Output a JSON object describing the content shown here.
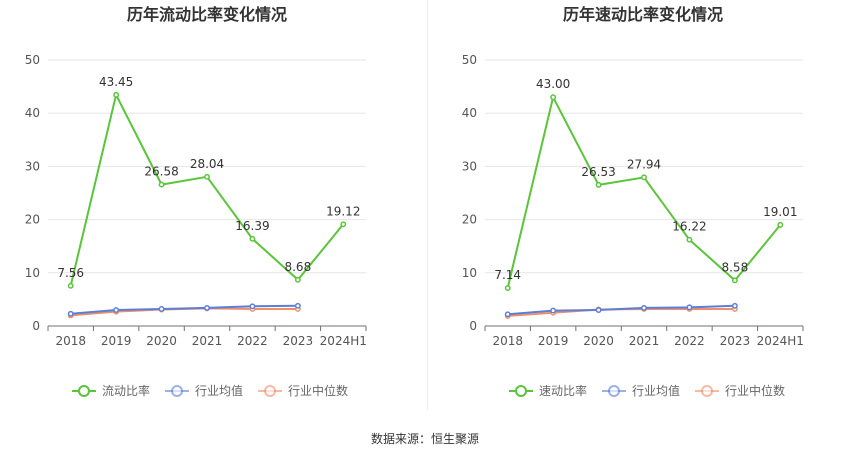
{
  "source_label": "数据来源：恒生聚源",
  "chart_data": [
    {
      "type": "line",
      "title": "历年流动比率变化情况",
      "categories": [
        "2018",
        "2019",
        "2020",
        "2021",
        "2022",
        "2023",
        "2024H1"
      ],
      "ylim": [
        0,
        50
      ],
      "yticks": [
        0,
        10,
        20,
        30,
        40,
        50
      ],
      "grid": true,
      "legend_position": "bottom",
      "series": [
        {
          "name": "流动比率",
          "color": "#5ac43a",
          "values": [
            7.56,
            43.45,
            26.58,
            28.04,
            16.39,
            8.68,
            19.12
          ],
          "show_labels": true
        },
        {
          "name": "行业均值",
          "color": "#5b7fd6",
          "values": [
            2.3,
            3.0,
            3.2,
            3.4,
            3.7,
            3.8,
            null
          ],
          "show_labels": false
        },
        {
          "name": "行业中位数",
          "color": "#f08e6b",
          "values": [
            2.0,
            2.7,
            3.1,
            3.3,
            3.2,
            3.2,
            null
          ],
          "show_labels": false
        }
      ]
    },
    {
      "type": "line",
      "title": "历年速动比率变化情况",
      "categories": [
        "2018",
        "2019",
        "2020",
        "2021",
        "2022",
        "2023",
        "2024H1"
      ],
      "ylim": [
        0,
        50
      ],
      "yticks": [
        0,
        10,
        20,
        30,
        40,
        50
      ],
      "grid": true,
      "legend_position": "bottom",
      "series": [
        {
          "name": "速动比率",
          "color": "#5ac43a",
          "values": [
            7.14,
            43.0,
            26.53,
            27.94,
            16.22,
            8.58,
            19.01
          ],
          "show_labels": true
        },
        {
          "name": "行业均值",
          "color": "#5b7fd6",
          "values": [
            2.2,
            2.9,
            3.0,
            3.4,
            3.5,
            3.8,
            null
          ],
          "show_labels": false
        },
        {
          "name": "行业中位数",
          "color": "#f08e6b",
          "values": [
            1.9,
            2.5,
            3.1,
            3.2,
            3.2,
            3.2,
            null
          ],
          "show_labels": false
        }
      ]
    }
  ]
}
